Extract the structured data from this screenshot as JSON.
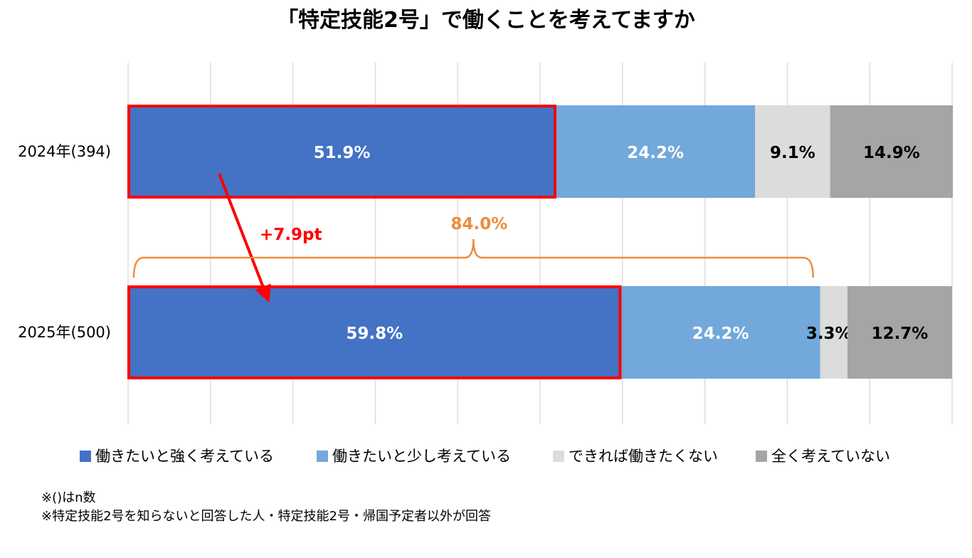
{
  "chart_data": {
    "type": "bar",
    "orientation": "horizontal",
    "stacked": true,
    "title": "「特定技能2号」で働くことを考えてますか",
    "categories": [
      "2024年(394)",
      "2025年(500)"
    ],
    "series": [
      {
        "name": "働きたいと強く考えている",
        "values": [
          51.9,
          59.8
        ],
        "labels": [
          "51.9%",
          "59.8%"
        ],
        "color": "#4472C4",
        "label_color": "#ffffff"
      },
      {
        "name": "働きたいと少し考えている",
        "values": [
          24.2,
          24.2
        ],
        "labels": [
          "24.2%",
          "24.2%"
        ],
        "color": "#72A8DA",
        "label_color": "#ffffff"
      },
      {
        "name": "できれば働きたくない",
        "values": [
          9.1,
          3.3
        ],
        "labels": [
          "9.1%",
          "3.3%"
        ],
        "color": "#DCDCDC",
        "label_color": "#000000"
      },
      {
        "name": "全く考えていない",
        "values": [
          14.9,
          12.7
        ],
        "labels": [
          "14.9%",
          "12.7%"
        ],
        "color": "#A5A5A5",
        "label_color": "#000000"
      }
    ],
    "xlim": [
      0,
      100
    ],
    "grid": true,
    "legend_position": "bottom",
    "annotations": {
      "change": {
        "text": "+7.9pt",
        "color": "#FF0000"
      },
      "bracket_total": {
        "text": "84.0%",
        "color": "#ED8D3D"
      },
      "highlight_color": "#FF0000"
    }
  },
  "notes": [
    "※()はn数",
    "※特定技能2号を知らないと回答した人・特定技能2号・帰国予定者以外が回答"
  ]
}
